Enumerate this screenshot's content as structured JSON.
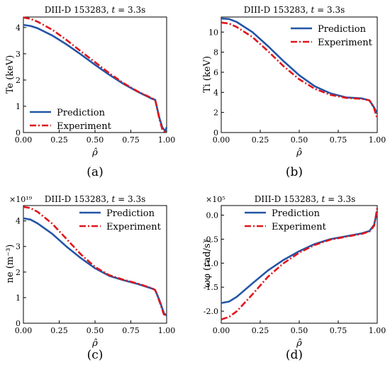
{
  "colors": {
    "prediction": "#2355a6",
    "experiment": "#e0161b"
  },
  "chart_data": [
    {
      "panel": "(a)",
      "type": "line",
      "title": "DIII-D 153283, t = 3.3s",
      "xlabel": "ρ̂",
      "ylabel": "Te (keV)",
      "multiplier": "",
      "xlim": [
        0,
        1
      ],
      "ylim": [
        0,
        4.4
      ],
      "xticks": [
        "0.00",
        "0.25",
        "0.50",
        "0.75",
        "1.00"
      ],
      "yticks": [
        "0",
        "1",
        "2",
        "3",
        "4"
      ],
      "legend_position": "bottom-left",
      "series": [
        {
          "name": "Prediction",
          "style": "solid",
          "x": [
            0,
            0.05,
            0.1,
            0.2,
            0.3,
            0.4,
            0.5,
            0.6,
            0.7,
            0.8,
            0.9,
            0.92,
            0.95,
            0.97,
            0.99,
            1.0
          ],
          "y": [
            4.1,
            4.06,
            3.97,
            3.7,
            3.36,
            2.98,
            2.58,
            2.2,
            1.85,
            1.55,
            1.28,
            1.25,
            0.55,
            0.2,
            0.05,
            0.2
          ]
        },
        {
          "name": "Experiment",
          "style": "dashdot",
          "x": [
            0,
            0.05,
            0.1,
            0.2,
            0.3,
            0.4,
            0.5,
            0.6,
            0.7,
            0.8,
            0.9,
            0.92,
            0.95,
            0.97,
            0.99,
            1.0
          ],
          "y": [
            4.38,
            4.33,
            4.22,
            3.92,
            3.53,
            3.1,
            2.68,
            2.26,
            1.88,
            1.56,
            1.3,
            1.25,
            0.5,
            0.12,
            0.0,
            0.0
          ]
        }
      ]
    },
    {
      "panel": "(b)",
      "type": "line",
      "title": "DIII-D 153283, t = 3.3s",
      "xlabel": "ρ̂",
      "ylabel": "Ti (keV)",
      "multiplier": "",
      "xlim": [
        0,
        1
      ],
      "ylim": [
        0,
        11.5
      ],
      "xticks": [
        "0.00",
        "0.25",
        "0.50",
        "0.75",
        "1.00"
      ],
      "yticks": [
        "0",
        "2",
        "4",
        "6",
        "8",
        "10"
      ],
      "legend_position": "top-right",
      "series": [
        {
          "name": "Prediction",
          "style": "solid",
          "x": [
            0,
            0.05,
            0.1,
            0.2,
            0.3,
            0.4,
            0.5,
            0.6,
            0.7,
            0.8,
            0.9,
            0.95,
            0.98,
            1.0
          ],
          "y": [
            11.35,
            11.3,
            11.0,
            10.0,
            8.6,
            7.1,
            5.7,
            4.6,
            3.9,
            3.5,
            3.4,
            3.2,
            2.5,
            1.9
          ]
        },
        {
          "name": "Experiment",
          "style": "dashdot",
          "x": [
            0,
            0.05,
            0.1,
            0.2,
            0.3,
            0.4,
            0.5,
            0.6,
            0.7,
            0.8,
            0.9,
            0.95,
            0.98,
            1.0
          ],
          "y": [
            10.95,
            10.85,
            10.5,
            9.5,
            8.1,
            6.6,
            5.3,
            4.35,
            3.75,
            3.45,
            3.35,
            3.2,
            2.4,
            1.4
          ]
        }
      ]
    },
    {
      "panel": "(c)",
      "type": "line",
      "title": "DIII-D 153283, t = 3.3s",
      "xlabel": "ρ̂",
      "ylabel": "ne (m⁻³)",
      "multiplier": "×10¹⁹",
      "xlim": [
        0,
        1
      ],
      "ylim": [
        0,
        4.6
      ],
      "xticks": [
        "0.00",
        "0.25",
        "0.50",
        "0.75",
        "1.00"
      ],
      "yticks": [
        "0",
        "1",
        "2",
        "3",
        "4"
      ],
      "legend_position": "top-right",
      "series": [
        {
          "name": "Prediction",
          "style": "solid",
          "x": [
            0,
            0.05,
            0.1,
            0.2,
            0.3,
            0.4,
            0.5,
            0.6,
            0.7,
            0.8,
            0.9,
            0.92,
            0.95,
            0.98,
            1.0
          ],
          "y": [
            4.1,
            4.05,
            3.9,
            3.5,
            3.0,
            2.55,
            2.15,
            1.85,
            1.68,
            1.53,
            1.35,
            1.3,
            0.9,
            0.4,
            0.3
          ]
        },
        {
          "name": "Experiment",
          "style": "dashdot",
          "x": [
            0,
            0.05,
            0.1,
            0.2,
            0.3,
            0.4,
            0.5,
            0.6,
            0.7,
            0.8,
            0.9,
            0.92,
            0.95,
            0.98,
            1.0
          ],
          "y": [
            4.55,
            4.5,
            4.35,
            3.9,
            3.3,
            2.7,
            2.2,
            1.88,
            1.7,
            1.55,
            1.36,
            1.3,
            0.85,
            0.35,
            0.3
          ]
        }
      ]
    },
    {
      "panel": "(d)",
      "type": "line",
      "title": "DIII-D 153283, t = 3.3s",
      "xlabel": "ρ̂",
      "ylabel": "ωφ (rad/s)",
      "multiplier": "×10⁵",
      "xlim": [
        0,
        1
      ],
      "ylim": [
        -2.25,
        0.2
      ],
      "xticks": [
        "0.00",
        "0.25",
        "0.50",
        "0.75",
        "1.00"
      ],
      "yticks": [
        "-2.0",
        "-1.5",
        "-1.0",
        "-0.5",
        "0.0"
      ],
      "legend_position": "top-left",
      "series": [
        {
          "name": "Prediction",
          "style": "solid",
          "x": [
            0,
            0.05,
            0.1,
            0.2,
            0.3,
            0.4,
            0.5,
            0.6,
            0.7,
            0.8,
            0.9,
            0.95,
            0.98,
            1.0
          ],
          "y": [
            -1.83,
            -1.8,
            -1.7,
            -1.42,
            -1.15,
            -0.93,
            -0.75,
            -0.6,
            -0.5,
            -0.44,
            -0.38,
            -0.33,
            -0.2,
            0.08
          ]
        },
        {
          "name": "Experiment",
          "style": "dashdot",
          "x": [
            0,
            0.05,
            0.1,
            0.2,
            0.3,
            0.4,
            0.5,
            0.6,
            0.7,
            0.8,
            0.9,
            0.95,
            0.98,
            1.0
          ],
          "y": [
            -2.17,
            -2.12,
            -2.0,
            -1.65,
            -1.28,
            -1.0,
            -0.78,
            -0.62,
            -0.51,
            -0.45,
            -0.39,
            -0.34,
            -0.22,
            0.15
          ]
        }
      ]
    }
  ]
}
